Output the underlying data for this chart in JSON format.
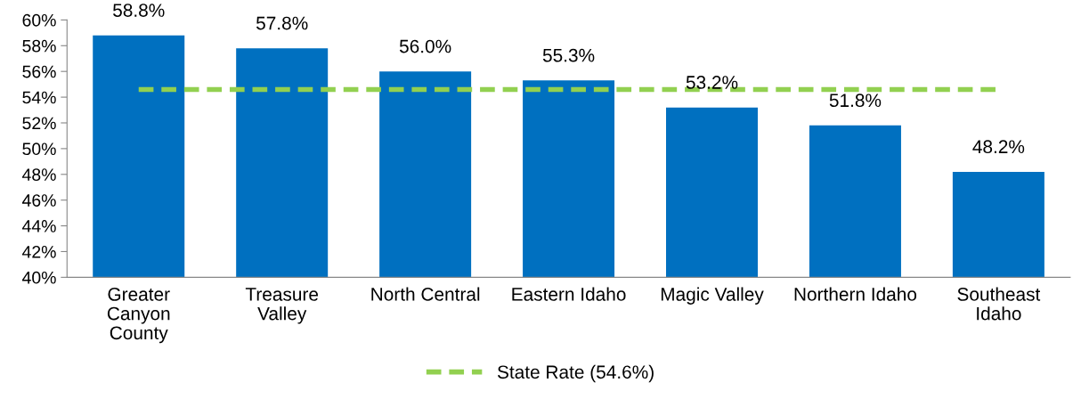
{
  "chart_data": {
    "type": "bar",
    "categories": [
      "Greater\nCanyon\nCounty",
      "Treasure\nValley",
      "North Central",
      "Eastern Idaho",
      "Magic Valley",
      "Northern Idaho",
      "Southeast\nIdaho"
    ],
    "series": [
      {
        "color": "#0070c0",
        "values": [
          58.8,
          57.8,
          56.0,
          55.3,
          53.2,
          51.8,
          48.2
        ],
        "value_labels": [
          "58.8%",
          "57.8%",
          "56.0%",
          "55.3%",
          "53.2%",
          "51.8%",
          "48.2%"
        ]
      },
      {
        "type": "line",
        "name": "State Rate (54.6%)",
        "color": "#92d050",
        "line_style": "dashed",
        "values": [
          54.6,
          54.6,
          54.6,
          54.6,
          54.6,
          54.6,
          54.6
        ]
      }
    ],
    "ylim": [
      40,
      60
    ],
    "yticks": [
      {
        "value": 40,
        "label": "40%"
      },
      {
        "value": 42,
        "label": "42%"
      },
      {
        "value": 44,
        "label": "44%"
      },
      {
        "value": 46,
        "label": "46%"
      },
      {
        "value": 48,
        "label": "48%"
      },
      {
        "value": 50,
        "label": "50%"
      },
      {
        "value": 52,
        "label": "52%"
      },
      {
        "value": 54,
        "label": "54%"
      },
      {
        "value": 56,
        "label": "56%"
      },
      {
        "value": 58,
        "label": "58%"
      },
      {
        "value": 60,
        "label": "60%"
      }
    ],
    "grid": false,
    "legend": "bottom"
  }
}
